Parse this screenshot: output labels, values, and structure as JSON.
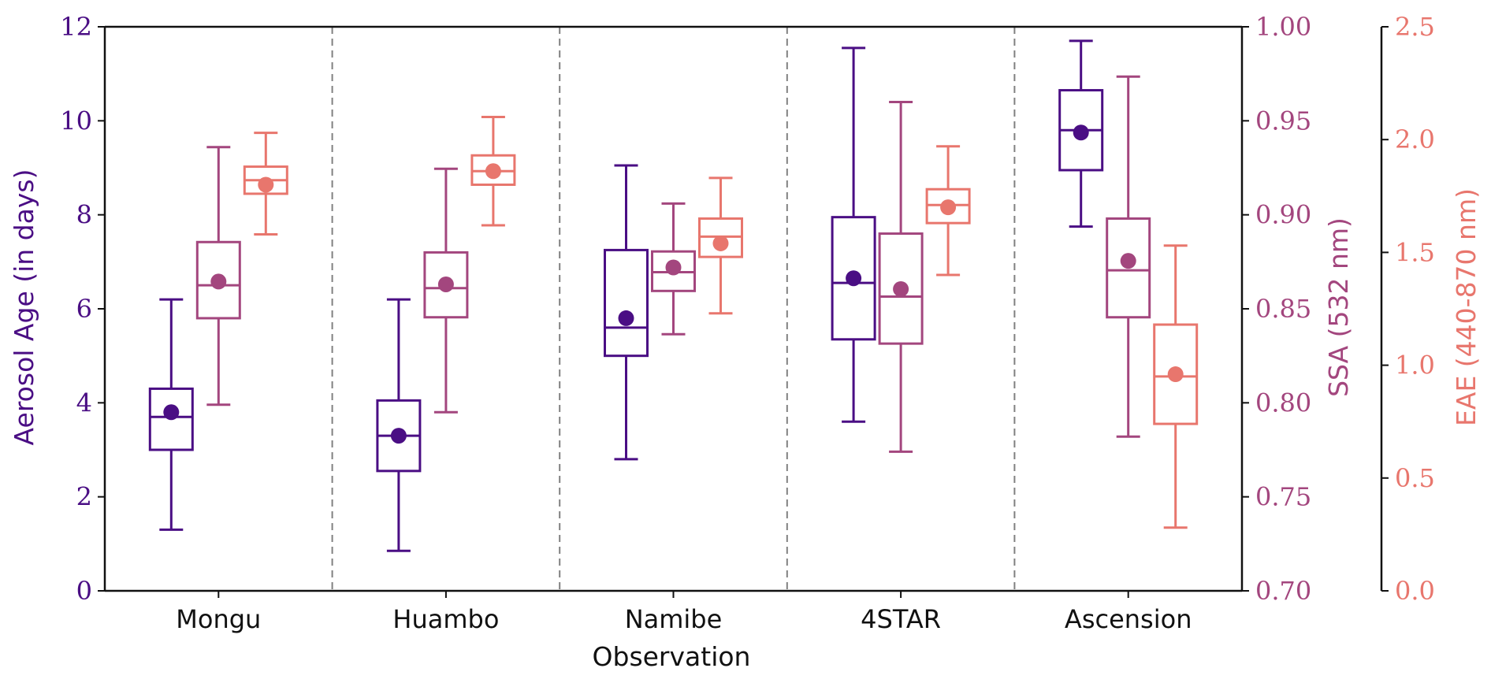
{
  "chart_data": {
    "type": "box",
    "xlabel": "Observation",
    "categories": [
      "Mongu",
      "Huambo",
      "Namibe",
      "4STAR",
      "Ascension"
    ],
    "colors": {
      "age": "#4a0e84",
      "ssa": "#a3467e",
      "eae": "#e8766d",
      "frame": "#111111",
      "separator": "#808080"
    },
    "axes": {
      "left": {
        "label": "Aerosol Age (in days)",
        "range": [
          0,
          12
        ],
        "ticks": [
          0,
          2,
          4,
          6,
          8,
          10,
          12
        ],
        "tick_labels": [
          "0",
          "2",
          "4",
          "6",
          "8",
          "10",
          "12"
        ]
      },
      "right1": {
        "label": "SSA (532 nm)",
        "range": [
          0.7,
          1.0
        ],
        "ticks": [
          0.7,
          0.75,
          0.8,
          0.85,
          0.9,
          0.95,
          1.0
        ],
        "tick_labels": [
          "0.70",
          "0.75",
          "0.80",
          "0.85",
          "0.90",
          "0.95",
          "1.00"
        ]
      },
      "right2": {
        "label": "EAE (440-870 nm)",
        "range": [
          0,
          2.5
        ],
        "ticks": [
          0,
          0.5,
          1.0,
          1.5,
          2.0,
          2.5
        ],
        "tick_labels": [
          "0.0",
          "0.5",
          "1.0",
          "1.5",
          "2.0",
          "2.5"
        ]
      }
    },
    "vertical_separators": true,
    "series": [
      {
        "axis": "left",
        "stats": [
          {
            "whislo": 1.3,
            "q1": 3.0,
            "med": 3.7,
            "q3": 4.3,
            "whishi": 6.2,
            "mean": 3.8
          },
          {
            "whislo": 0.85,
            "q1": 2.55,
            "med": 3.3,
            "q3": 4.05,
            "whishi": 6.2,
            "mean": 3.3
          },
          {
            "whislo": 2.8,
            "q1": 5.0,
            "med": 5.6,
            "q3": 7.25,
            "whishi": 9.05,
            "mean": 5.8
          },
          {
            "whislo": 3.6,
            "q1": 5.35,
            "med": 6.55,
            "q3": 7.95,
            "whishi": 11.55,
            "mean": 6.65
          },
          {
            "whislo": 7.75,
            "q1": 8.95,
            "med": 9.8,
            "q3": 10.65,
            "whishi": 11.7,
            "mean": 9.75
          }
        ]
      },
      {
        "axis": "right1",
        "stats": [
          {
            "whislo": 0.799,
            "q1": 0.845,
            "med": 0.8625,
            "q3": 0.8855,
            "whishi": 0.936,
            "mean": 0.8645
          },
          {
            "whislo": 0.795,
            "q1": 0.8455,
            "med": 0.861,
            "q3": 0.88,
            "whishi": 0.9245,
            "mean": 0.863
          },
          {
            "whislo": 0.8365,
            "q1": 0.8595,
            "med": 0.8695,
            "q3": 0.8805,
            "whishi": 0.906,
            "mean": 0.872
          },
          {
            "whislo": 0.774,
            "q1": 0.8315,
            "med": 0.8565,
            "q3": 0.89,
            "whishi": 0.96,
            "mean": 0.8605
          },
          {
            "whislo": 0.782,
            "q1": 0.8455,
            "med": 0.8705,
            "q3": 0.898,
            "whishi": 0.9735,
            "mean": 0.8755
          }
        ]
      },
      {
        "axis": "right2",
        "stats": [
          {
            "whislo": 1.58,
            "q1": 1.76,
            "med": 1.82,
            "q3": 1.88,
            "whishi": 2.03,
            "mean": 1.8
          },
          {
            "whislo": 1.62,
            "q1": 1.8,
            "med": 1.86,
            "q3": 1.93,
            "whishi": 2.1,
            "mean": 1.86
          },
          {
            "whislo": 1.23,
            "q1": 1.48,
            "med": 1.57,
            "q3": 1.65,
            "whishi": 1.83,
            "mean": 1.54
          },
          {
            "whislo": 1.4,
            "q1": 1.63,
            "med": 1.71,
            "q3": 1.78,
            "whishi": 1.97,
            "mean": 1.7
          },
          {
            "whislo": 0.28,
            "q1": 0.74,
            "med": 0.95,
            "q3": 1.18,
            "whishi": 1.53,
            "mean": 0.96
          }
        ]
      }
    ]
  }
}
